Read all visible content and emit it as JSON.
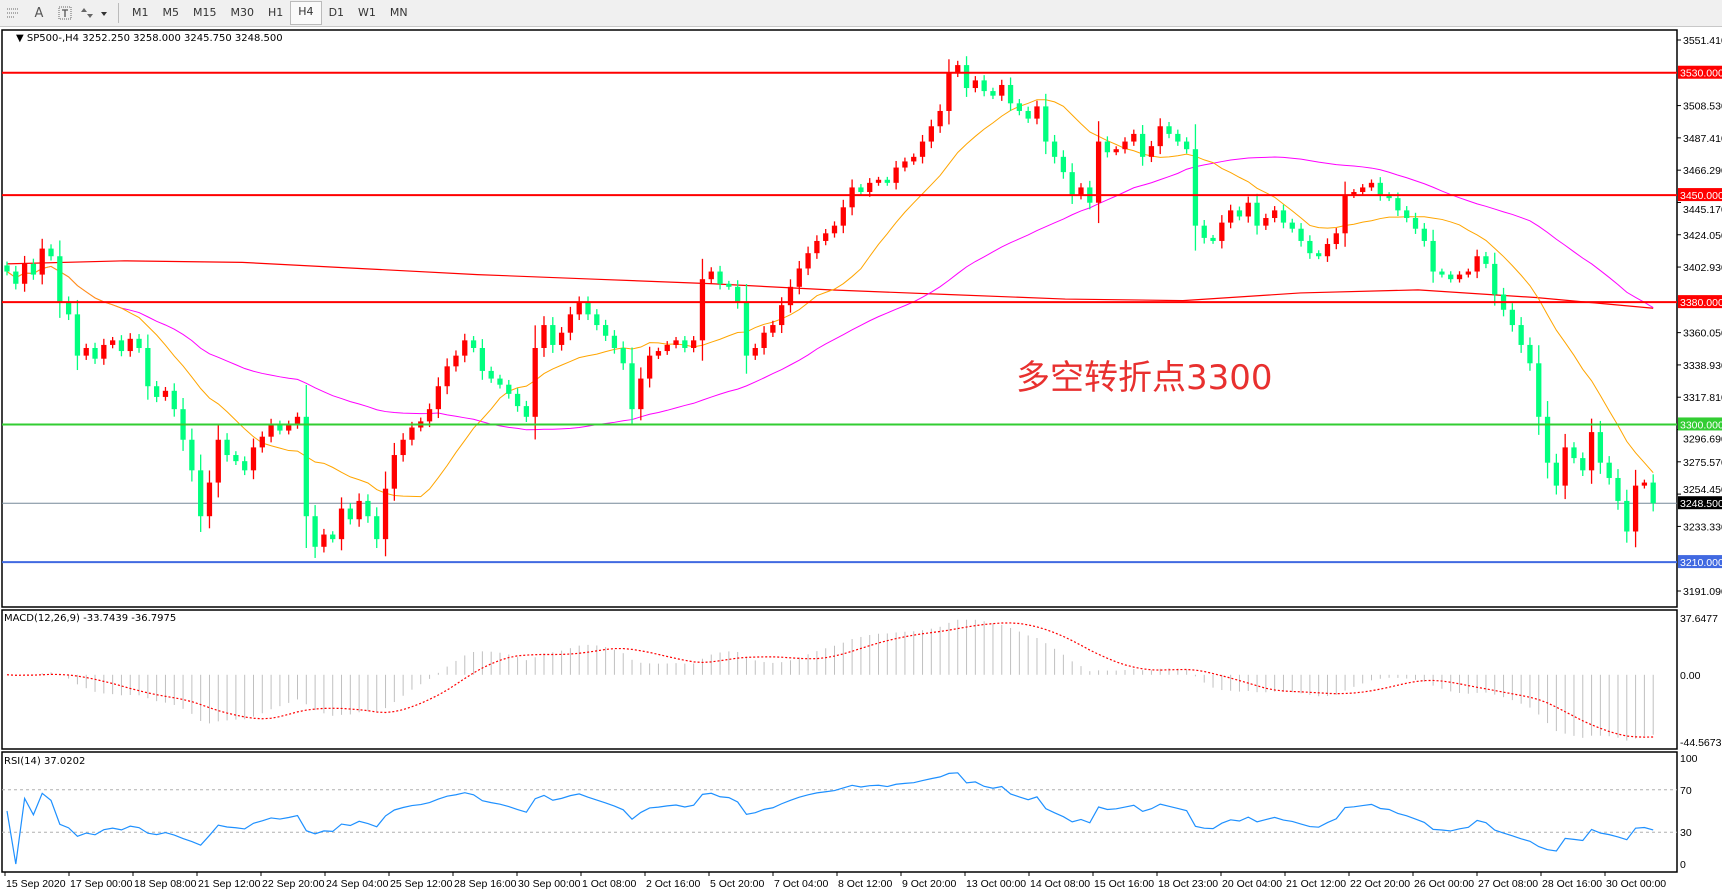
{
  "toolbar": {
    "icons": [
      "fibonacci-icon",
      "text-icon",
      "text-label-icon",
      "arrows-icon"
    ],
    "text_icon_glyph": "A",
    "timeframes": [
      "M1",
      "M5",
      "M15",
      "M30",
      "H1",
      "H4",
      "D1",
      "W1",
      "MN"
    ],
    "active_timeframe": "H4"
  },
  "chart": {
    "symbol_label": "SP500-,H4",
    "ohlc": "3252.250 3258.000 3245.750 3248.500",
    "annotation": "多空转折点3300"
  },
  "colors": {
    "bull_candle": "#ff0000",
    "bear_candle": "#00ff7f",
    "ma_fast": "#ffa500",
    "ma_mid": "#ff00ff",
    "ma_long": "#ff0000",
    "resistance": "#ff0000",
    "pivot": "#32cd32",
    "support": "#4169e1",
    "current_price_line": "#778899",
    "macd_hist": "#c0c0c0",
    "macd_signal": "#ff0000",
    "rsi_line": "#1e90ff"
  },
  "chart_data": {
    "type": "candlestick",
    "symbol": "SP500-",
    "timeframe": "H4",
    "ylim": [
      3191.09,
      3551.41
    ],
    "price_ticks": [
      "3551.410",
      "3508.530",
      "3487.410",
      "3466.290",
      "3445.170",
      "3424.050",
      "3402.930",
      "3360.050",
      "3338.930",
      "3317.810",
      "3296.690",
      "3275.570",
      "3254.450",
      "3233.330",
      "3191.090"
    ],
    "levels": [
      {
        "value": 3530,
        "label": "3530.000",
        "kind": "resistance"
      },
      {
        "value": 3450,
        "label": "3450.000",
        "kind": "resistance"
      },
      {
        "value": 3380,
        "label": "3380.000",
        "kind": "resistance"
      },
      {
        "value": 3300,
        "label": "3300.000",
        "kind": "pivot"
      },
      {
        "value": 3210,
        "label": "3210.000",
        "kind": "support"
      }
    ],
    "current_price": {
      "value": 3248.5,
      "label": "3248.500"
    },
    "closes": [
      3400,
      3392,
      3405,
      3398,
      3415,
      3410,
      3380,
      3372,
      3345,
      3350,
      3343,
      3352,
      3355,
      3348,
      3356,
      3350,
      3325,
      3318,
      3322,
      3310,
      3290,
      3270,
      3240,
      3262,
      3290,
      3280,
      3276,
      3270,
      3285,
      3292,
      3300,
      3296,
      3300,
      3305,
      3240,
      3220,
      3228,
      3225,
      3245,
      3238,
      3250,
      3240,
      3225,
      3258,
      3280,
      3290,
      3298,
      3302,
      3310,
      3325,
      3338,
      3345,
      3355,
      3350,
      3335,
      3330,
      3326,
      3320,
      3312,
      3305,
      3350,
      3365,
      3352,
      3360,
      3372,
      3380,
      3372,
      3365,
      3358,
      3350,
      3340,
      3310,
      3330,
      3345,
      3348,
      3352,
      3355,
      3350,
      3355,
      3395,
      3400,
      3392,
      3390,
      3380,
      3345,
      3350,
      3360,
      3365,
      3378,
      3390,
      3402,
      3412,
      3420,
      3425,
      3430,
      3442,
      3455,
      3452,
      3458,
      3460,
      3458,
      3468,
      3472,
      3475,
      3485,
      3495,
      3505,
      3530,
      3535,
      3520,
      3525,
      3518,
      3515,
      3522,
      3510,
      3505,
      3500,
      3508,
      3485,
      3475,
      3465,
      3450,
      3455,
      3445,
      3485,
      3478,
      3480,
      3485,
      3490,
      3475,
      3482,
      3495,
      3490,
      3485,
      3480,
      3430,
      3422,
      3420,
      3432,
      3440,
      3436,
      3445,
      3430,
      3435,
      3440,
      3432,
      3428,
      3420,
      3412,
      3410,
      3418,
      3425,
      3450,
      3452,
      3455,
      3458,
      3450,
      3448,
      3440,
      3435,
      3428,
      3420,
      3400,
      3398,
      3395,
      3398,
      3400,
      3410,
      3405,
      3385,
      3375,
      3365,
      3352,
      3340,
      3305,
      3275,
      3260,
      3285,
      3278,
      3270,
      3295,
      3275,
      3265,
      3250,
      3230,
      3260,
      3262,
      3248.5
    ],
    "ma_long": [
      3405,
      3407,
      3406,
      3402,
      3398,
      3395,
      3392,
      3388,
      3385,
      3382,
      3381,
      3386,
      3388,
      3383,
      3376
    ],
    "time_labels": [
      "15 Sep 2020",
      "17 Sep 00:00",
      "18 Sep 08:00",
      "21 Sep 12:00",
      "22 Sep 20:00",
      "24 Sep 04:00",
      "25 Sep 12:00",
      "28 Sep 16:00",
      "30 Sep 00:00",
      "1 Oct 08:00",
      "2 Oct 16:00",
      "5 Oct 20:00",
      "7 Oct 04:00",
      "8 Oct 12:00",
      "9 Oct 20:00",
      "13 Oct 00:00",
      "14 Oct 08:00",
      "15 Oct 16:00",
      "18 Oct 23:00",
      "20 Oct 04:00",
      "21 Oct 12:00",
      "22 Oct 20:00",
      "26 Oct 00:00",
      "27 Oct 08:00",
      "28 Oct 16:00",
      "30 Oct 00:00"
    ],
    "macd": {
      "label": "MACD(12,26,9) -33.7439 -36.7975",
      "params": [
        12,
        26,
        9
      ],
      "ylim": [
        -44.5673,
        37.6477
      ],
      "ticks": [
        "37.6477",
        "0.00",
        "-44.5673"
      ]
    },
    "rsi": {
      "label": "RSI(14) 37.0202",
      "period": 14,
      "ylim": [
        0,
        100
      ],
      "ticks": [
        "100",
        "70",
        "30",
        "0"
      ],
      "levels": [
        70,
        30
      ]
    }
  }
}
